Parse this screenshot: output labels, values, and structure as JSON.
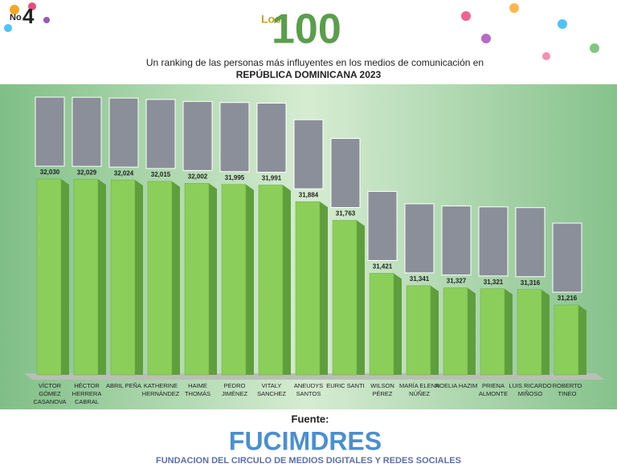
{
  "chart_data": {
    "type": "bar",
    "issue_prefix": "No",
    "issue_number": "4",
    "logo_prefix": "Los",
    "logo_number": "100",
    "subtitle": "Un ranking de las personas más influyentes en los medios de comunicación en",
    "subtitle_emphasis": "REPÚBLICA DOMINICANA 2023",
    "categories": [
      "VÍCTOR GÓMEZ CASANOVA",
      "HÉCTOR HERRERA CABRAL",
      "ABRIL PEÑA",
      "KATHERINE HERNÁNDEZ",
      "HAIME THOMÁS",
      "PEDRO JIMÉNEZ",
      "VITALY SANCHEZ",
      "ANEUDYS SANTOS",
      "EURIC SANTI",
      "WILSON PÉREZ",
      "MARÍA ELENA NÚÑEZ",
      "NOELIA HAZIM",
      "PRIENA ALMONTE",
      "LUIS RICARDO MIÑOSO",
      "ROBERTO TINEO"
    ],
    "values": [
      32030,
      32029,
      32024,
      32015,
      32002,
      31995,
      31991,
      31884,
      31763,
      31421,
      31341,
      31327,
      31321,
      31316,
      31216
    ],
    "value_labels": [
      "32,030",
      "32,029",
      "32,024",
      "32,015",
      "32,002",
      "31,995",
      "31,991",
      "31,884",
      "31,763",
      "31,421",
      "31,341",
      "31,327",
      "31,321",
      "31,316",
      "31,216"
    ],
    "color": "#8cce5a",
    "source_label": "Fuente:",
    "source_name": "FUCIMDRES",
    "source_full": "FUNDACION DEL CIRCULO DE MEDIOS DIGITALES Y REDES SOCIALES"
  }
}
